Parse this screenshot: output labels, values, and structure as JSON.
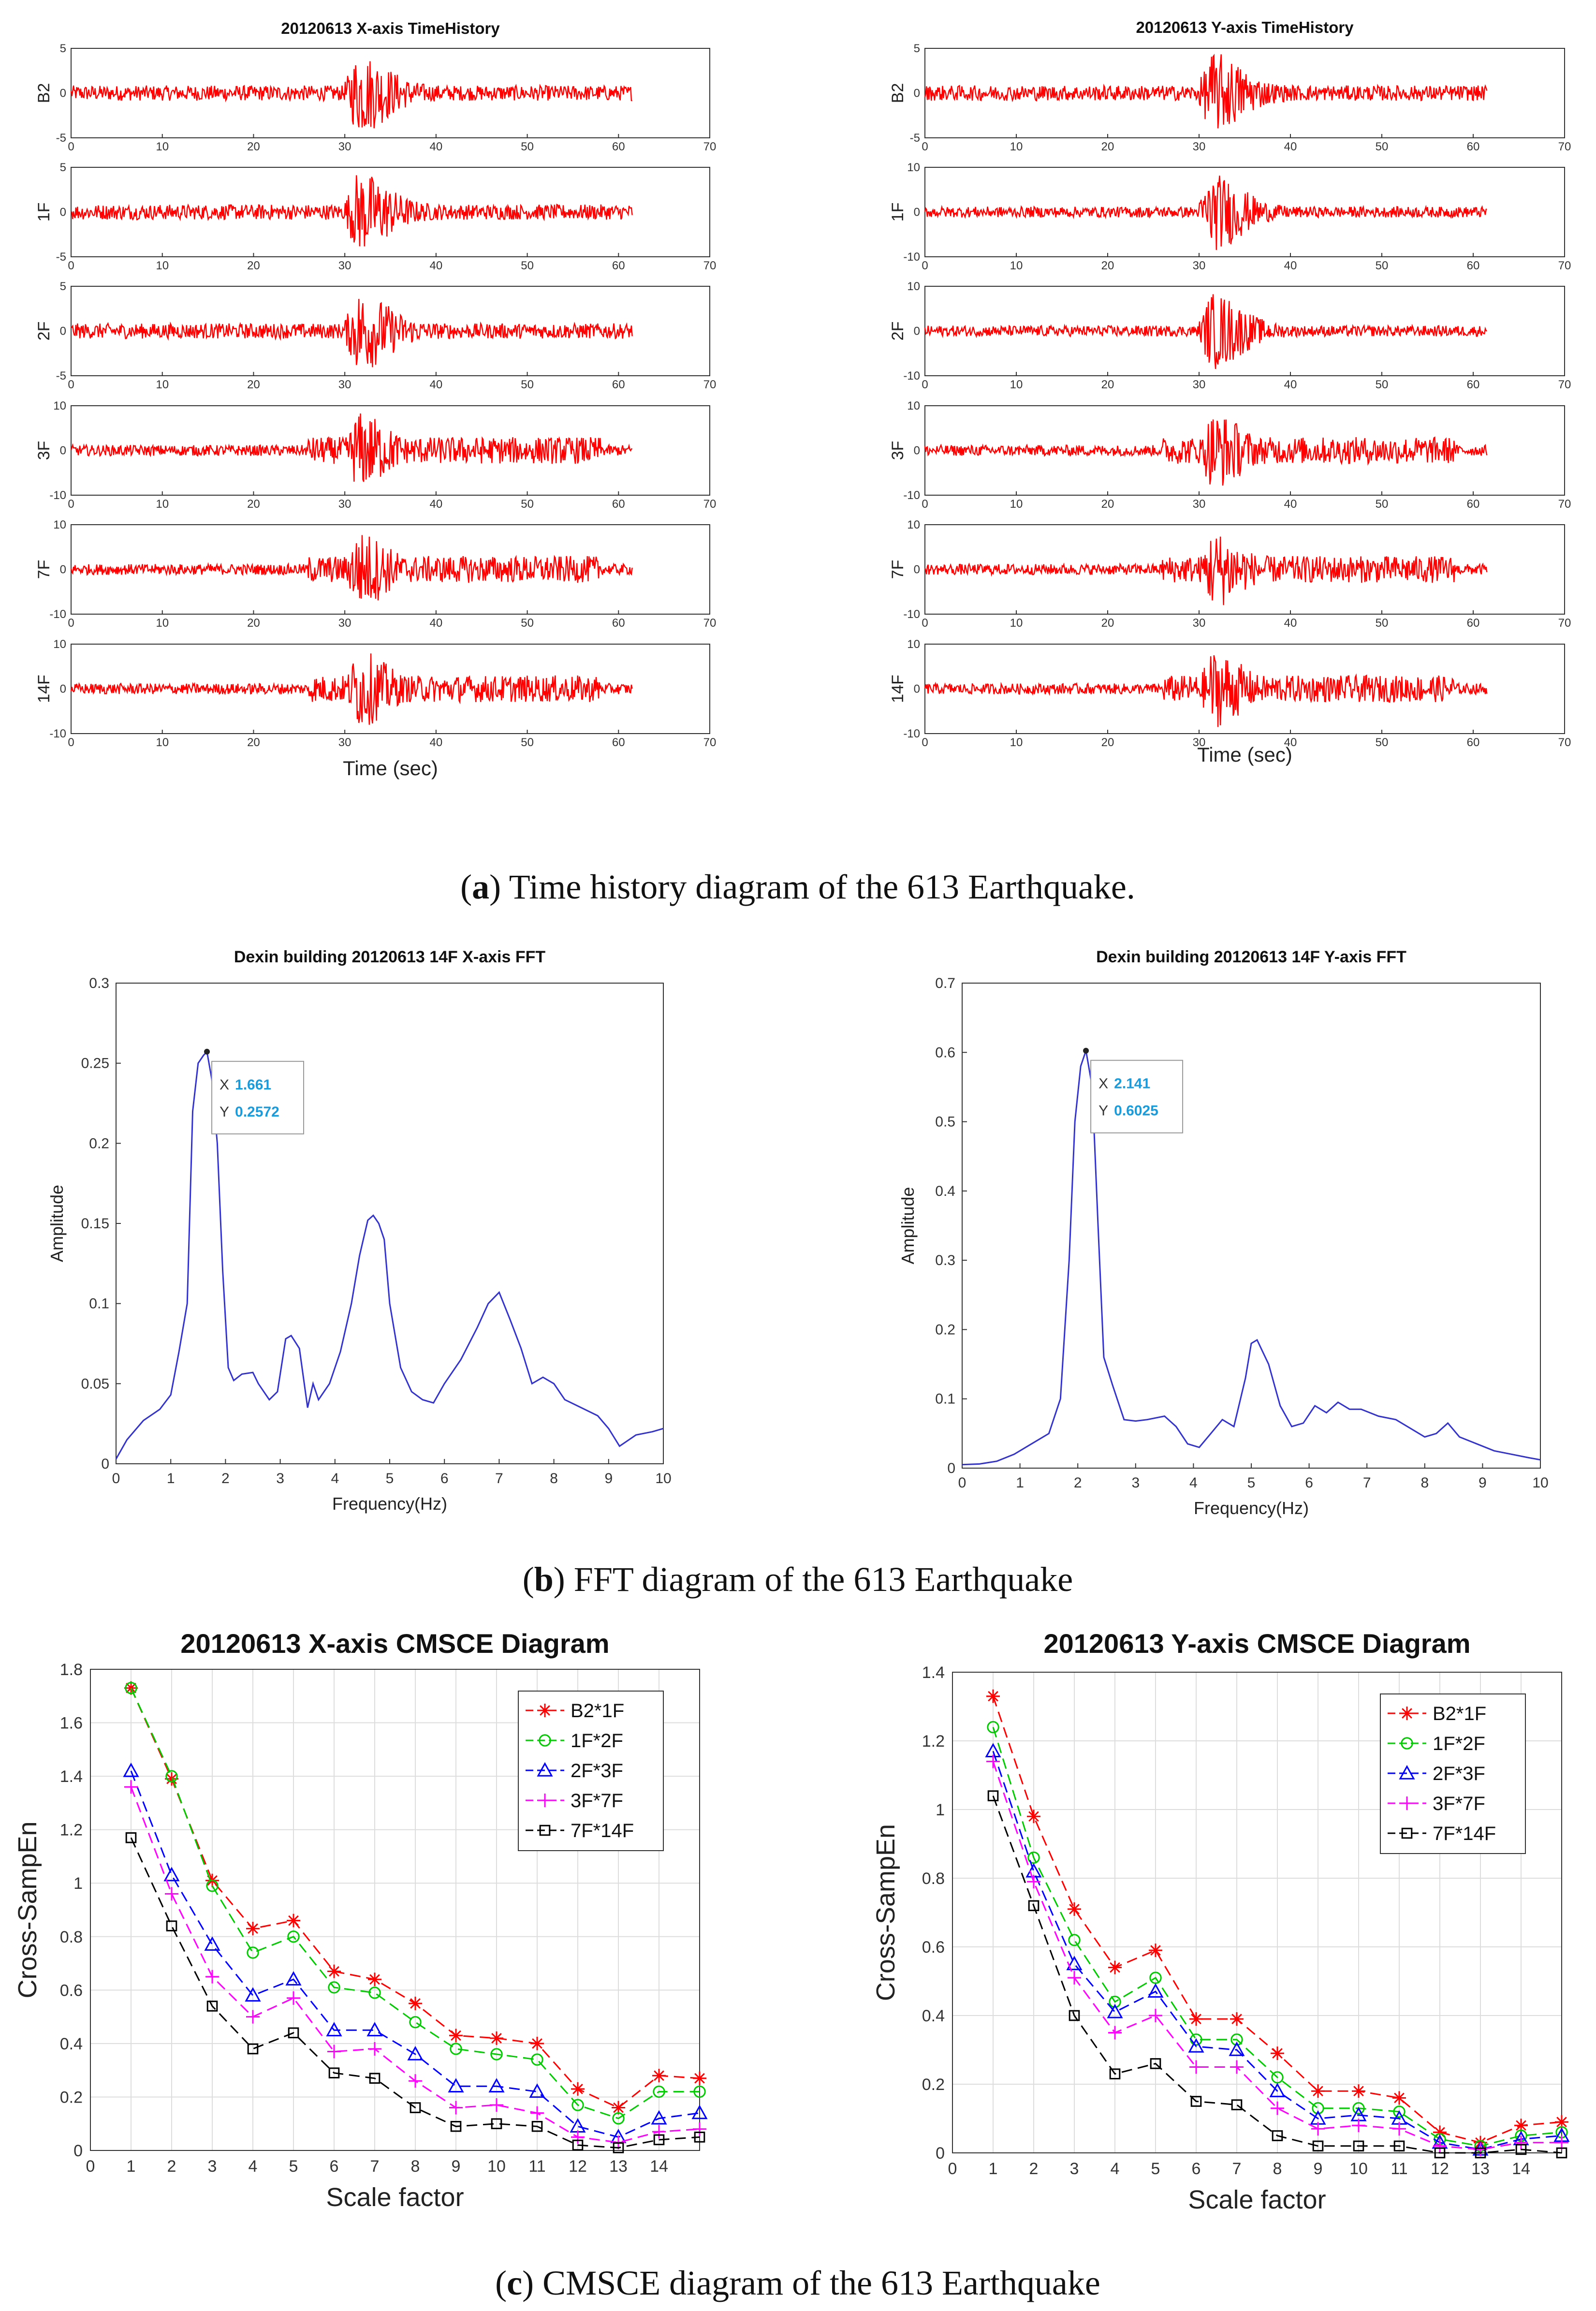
{
  "captions": {
    "a": {
      "letter": "a",
      "text": ") Time history diagram of the 613 Earthquake."
    },
    "b": {
      "letter": "b",
      "text": ") FFT diagram of the 613 Earthquake"
    },
    "c": {
      "letter": "c",
      "text": ") CMSCE diagram of the 613 Earthquake"
    }
  },
  "chart_data": [
    {
      "type": "line",
      "title": "20120613 X-axis TimeHistory",
      "xlabel": "Time (sec)",
      "xlim": [
        0,
        70
      ],
      "xticks": [
        "0",
        "10",
        "20",
        "30",
        "40",
        "50",
        "60",
        "70"
      ],
      "color": "#ff0000",
      "series": [
        {
          "name": "B2",
          "ylim": [
            -5,
            5
          ],
          "yticks": [
            "5",
            "0",
            "-5"
          ],
          "duration": 61.5
        },
        {
          "name": "1F",
          "ylim": [
            -5,
            5
          ],
          "yticks": [
            "5",
            "0",
            "-5"
          ],
          "duration": 61.5
        },
        {
          "name": "2F",
          "ylim": [
            -5,
            5
          ],
          "yticks": [
            "5",
            "0",
            "-5"
          ],
          "duration": 61.5
        },
        {
          "name": "3F",
          "ylim": [
            -10,
            10
          ],
          "yticks": [
            "10",
            "0",
            "-10"
          ],
          "duration": 61.5
        },
        {
          "name": "7F",
          "ylim": [
            -10,
            10
          ],
          "yticks": [
            "10",
            "0",
            "-10"
          ],
          "duration": 61.5
        },
        {
          "name": "14F",
          "ylim": [
            -10,
            10
          ],
          "yticks": [
            "10",
            "0",
            "-10"
          ],
          "duration": 61.5
        }
      ]
    },
    {
      "type": "line",
      "title": "20120613 Y-axis TimeHistory",
      "xlabel": "Time (sec)",
      "xlim": [
        0,
        70
      ],
      "xticks": [
        "0",
        "10",
        "20",
        "30",
        "40",
        "50",
        "60",
        "70"
      ],
      "color": "#ff0000",
      "series": [
        {
          "name": "B2",
          "ylim": [
            -5,
            5
          ],
          "yticks": [
            "5",
            "0",
            "-5"
          ],
          "duration": 61.5
        },
        {
          "name": "1F",
          "ylim": [
            -10,
            10
          ],
          "yticks": [
            "10",
            "0",
            "-10"
          ],
          "duration": 61.5
        },
        {
          "name": "2F",
          "ylim": [
            -10,
            10
          ],
          "yticks": [
            "10",
            "0",
            "-10"
          ],
          "duration": 61.5
        },
        {
          "name": "3F",
          "ylim": [
            -10,
            10
          ],
          "yticks": [
            "10",
            "0",
            "-10"
          ],
          "duration": 61.5
        },
        {
          "name": "7F",
          "ylim": [
            -10,
            10
          ],
          "yticks": [
            "10",
            "0",
            "-10"
          ],
          "duration": 61.5
        },
        {
          "name": "14F",
          "ylim": [
            -10,
            10
          ],
          "yticks": [
            "10",
            "0",
            "-10"
          ],
          "duration": 61.5
        }
      ]
    },
    {
      "type": "line",
      "title": "Dexin building 20120613 14F X-axis FFT",
      "xlabel": "Frequency(Hz)",
      "ylabel": "Amplitude",
      "xlim": [
        0,
        10
      ],
      "ylim": [
        0,
        0.3
      ],
      "xticks": [
        "0",
        "1",
        "2",
        "3",
        "4",
        "5",
        "6",
        "7",
        "8",
        "9",
        "10"
      ],
      "yticks": [
        "0",
        "0.05",
        "0.1",
        "0.15",
        "0.2",
        "0.25",
        "0.3"
      ],
      "color": "#3333cc",
      "x": [
        0,
        0.2,
        0.5,
        0.8,
        1.0,
        1.15,
        1.3,
        1.4,
        1.5,
        1.6,
        1.661,
        1.75,
        1.85,
        1.95,
        2.05,
        2.15,
        2.3,
        2.5,
        2.6,
        2.8,
        2.95,
        3.1,
        3.2,
        3.35,
        3.5,
        3.6,
        3.7,
        3.9,
        4.1,
        4.3,
        4.45,
        4.6,
        4.7,
        4.8,
        4.9,
        5.0,
        5.2,
        5.4,
        5.6,
        5.8,
        6.0,
        6.3,
        6.6,
        6.8,
        7.0,
        7.2,
        7.4,
        7.6,
        7.8,
        8.0,
        8.2,
        8.5,
        8.8,
        9.0,
        9.2,
        9.5,
        9.8,
        10.0
      ],
      "y": [
        0.003,
        0.015,
        0.027,
        0.034,
        0.043,
        0.07,
        0.1,
        0.22,
        0.25,
        0.255,
        0.2572,
        0.24,
        0.2,
        0.12,
        0.06,
        0.052,
        0.056,
        0.057,
        0.05,
        0.04,
        0.045,
        0.078,
        0.08,
        0.072,
        0.035,
        0.05,
        0.04,
        0.05,
        0.07,
        0.1,
        0.13,
        0.152,
        0.155,
        0.15,
        0.14,
        0.1,
        0.06,
        0.045,
        0.04,
        0.038,
        0.05,
        0.065,
        0.085,
        0.1,
        0.107,
        0.09,
        0.072,
        0.05,
        0.054,
        0.05,
        0.04,
        0.035,
        0.03,
        0.022,
        0.011,
        0.018,
        0.02,
        0.022
      ],
      "tooltip": {
        "x_label": "X",
        "x_value": "1.661",
        "y_label": "Y",
        "y_value": "0.2572"
      }
    },
    {
      "type": "line",
      "title": "Dexin building 20120613 14F Y-axis FFT",
      "xlabel": "Frequency(Hz)",
      "ylabel": "Amplitude",
      "xlim": [
        0,
        10
      ],
      "ylim": [
        0,
        0.7
      ],
      "xticks": [
        "0",
        "1",
        "2",
        "3",
        "4",
        "5",
        "6",
        "7",
        "8",
        "9",
        "10"
      ],
      "yticks": [
        "0",
        "0.1",
        "0.2",
        "0.3",
        "0.4",
        "0.5",
        "0.6",
        "0.7"
      ],
      "color": "#3333cc",
      "x": [
        0,
        0.3,
        0.6,
        0.9,
        1.2,
        1.5,
        1.7,
        1.85,
        1.95,
        2.05,
        2.141,
        2.25,
        2.35,
        2.45,
        2.6,
        2.8,
        3.0,
        3.2,
        3.5,
        3.7,
        3.9,
        4.1,
        4.3,
        4.5,
        4.7,
        4.9,
        5.0,
        5.1,
        5.3,
        5.5,
        5.7,
        5.9,
        6.1,
        6.3,
        6.5,
        6.7,
        6.9,
        7.2,
        7.5,
        7.8,
        8.0,
        8.2,
        8.4,
        8.6,
        8.9,
        9.2,
        9.5,
        9.8,
        10.0
      ],
      "y": [
        0.005,
        0.006,
        0.01,
        0.02,
        0.035,
        0.05,
        0.1,
        0.3,
        0.5,
        0.58,
        0.6025,
        0.55,
        0.35,
        0.16,
        0.12,
        0.07,
        0.068,
        0.07,
        0.075,
        0.06,
        0.035,
        0.03,
        0.05,
        0.07,
        0.06,
        0.13,
        0.18,
        0.185,
        0.15,
        0.09,
        0.06,
        0.065,
        0.09,
        0.08,
        0.095,
        0.085,
        0.085,
        0.075,
        0.07,
        0.055,
        0.045,
        0.05,
        0.065,
        0.045,
        0.035,
        0.025,
        0.02,
        0.015,
        0.012
      ],
      "tooltip": {
        "x_label": "X",
        "x_value": "2.141",
        "y_label": "Y",
        "y_value": "0.6025"
      }
    },
    {
      "type": "line",
      "title": "20120613 X-axis CMSCE Diagram",
      "xlabel": "Scale factor",
      "ylabel": "Cross-SampEn",
      "xlim": [
        0,
        15
      ],
      "ylim": [
        0,
        1.8
      ],
      "xticks": [
        "0",
        "1",
        "2",
        "3",
        "4",
        "5",
        "6",
        "7",
        "8",
        "9",
        "10",
        "11",
        "12",
        "13",
        "14"
      ],
      "yticks": [
        "0",
        "0.2",
        "0.4",
        "0.6",
        "0.8",
        "1",
        "1.2",
        "1.4",
        "1.6",
        "1.8"
      ],
      "x": [
        1,
        2,
        3,
        4,
        5,
        6,
        7,
        8,
        9,
        10,
        11,
        12,
        13,
        14,
        15
      ],
      "series": [
        {
          "name": "B2*1F",
          "color": "#ff0000",
          "marker": "star",
          "values": [
            1.73,
            1.39,
            1.01,
            0.83,
            0.86,
            0.67,
            0.64,
            0.55,
            0.43,
            0.42,
            0.4,
            0.23,
            0.16,
            0.28,
            0.27
          ]
        },
        {
          "name": "1F*2F",
          "color": "#00cc00",
          "marker": "circle",
          "values": [
            1.73,
            1.4,
            0.99,
            0.74,
            0.8,
            0.61,
            0.59,
            0.48,
            0.38,
            0.36,
            0.34,
            0.17,
            0.12,
            0.22,
            0.22
          ]
        },
        {
          "name": "2F*3F",
          "color": "#0000ff",
          "marker": "triangle",
          "values": [
            1.42,
            1.03,
            0.77,
            0.58,
            0.64,
            0.45,
            0.45,
            0.36,
            0.24,
            0.24,
            0.22,
            0.09,
            0.05,
            0.12,
            0.14
          ]
        },
        {
          "name": "3F*7F",
          "color": "#ff00ff",
          "marker": "plus",
          "values": [
            1.36,
            0.96,
            0.65,
            0.5,
            0.57,
            0.37,
            0.38,
            0.26,
            0.16,
            0.17,
            0.14,
            0.05,
            0.03,
            0.07,
            0.08
          ]
        },
        {
          "name": "7F*14F",
          "color": "#000000",
          "marker": "square",
          "values": [
            1.17,
            0.84,
            0.54,
            0.38,
            0.44,
            0.29,
            0.27,
            0.16,
            0.09,
            0.1,
            0.09,
            0.02,
            0.01,
            0.04,
            0.05
          ]
        }
      ],
      "legend": "top-right"
    },
    {
      "type": "line",
      "title": "20120613 Y-axis CMSCE Diagram",
      "xlabel": "Scale factor",
      "ylabel": "Cross-SampEn",
      "xlim": [
        0,
        15
      ],
      "ylim": [
        0,
        1.4
      ],
      "xticks": [
        "0",
        "1",
        "2",
        "3",
        "4",
        "5",
        "6",
        "7",
        "8",
        "9",
        "10",
        "11",
        "12",
        "13",
        "14"
      ],
      "yticks": [
        "0",
        "0.2",
        "0.4",
        "0.6",
        "0.8",
        "1",
        "1.2",
        "1.4"
      ],
      "x": [
        1,
        2,
        3,
        4,
        5,
        6,
        7,
        8,
        9,
        10,
        11,
        12,
        13,
        14,
        15
      ],
      "series": [
        {
          "name": "B2*1F",
          "color": "#ff0000",
          "marker": "star",
          "values": [
            1.33,
            0.98,
            0.71,
            0.54,
            0.59,
            0.39,
            0.39,
            0.29,
            0.18,
            0.18,
            0.16,
            0.06,
            0.03,
            0.08,
            0.09
          ]
        },
        {
          "name": "1F*2F",
          "color": "#00cc00",
          "marker": "circle",
          "values": [
            1.24,
            0.86,
            0.62,
            0.44,
            0.51,
            0.33,
            0.33,
            0.22,
            0.13,
            0.13,
            0.12,
            0.04,
            0.02,
            0.05,
            0.06
          ]
        },
        {
          "name": "2F*3F",
          "color": "#0000ff",
          "marker": "triangle",
          "values": [
            1.17,
            0.82,
            0.55,
            0.41,
            0.47,
            0.31,
            0.3,
            0.18,
            0.1,
            0.11,
            0.1,
            0.03,
            0.01,
            0.04,
            0.05
          ]
        },
        {
          "name": "3F*7F",
          "color": "#ff00ff",
          "marker": "plus",
          "values": [
            1.14,
            0.79,
            0.51,
            0.35,
            0.4,
            0.25,
            0.25,
            0.13,
            0.07,
            0.08,
            0.07,
            0.02,
            0.01,
            0.03,
            0.03
          ]
        },
        {
          "name": "7F*14F",
          "color": "#000000",
          "marker": "square",
          "values": [
            1.04,
            0.72,
            0.4,
            0.23,
            0.26,
            0.15,
            0.14,
            0.05,
            0.02,
            0.02,
            0.02,
            0.0,
            0.0,
            0.01,
            0.0
          ]
        }
      ],
      "legend": "top-right"
    }
  ]
}
